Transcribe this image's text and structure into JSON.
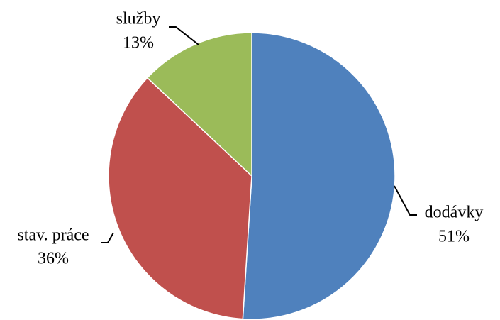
{
  "chart_data": {
    "type": "pie",
    "categories": [
      "dodávky",
      "stav. práce",
      "služby"
    ],
    "values": [
      51,
      36,
      13
    ],
    "value_labels": [
      "51%",
      "36%",
      "13%"
    ],
    "colors": [
      "#4f81bd",
      "#c0504d",
      "#9bbb59"
    ]
  }
}
